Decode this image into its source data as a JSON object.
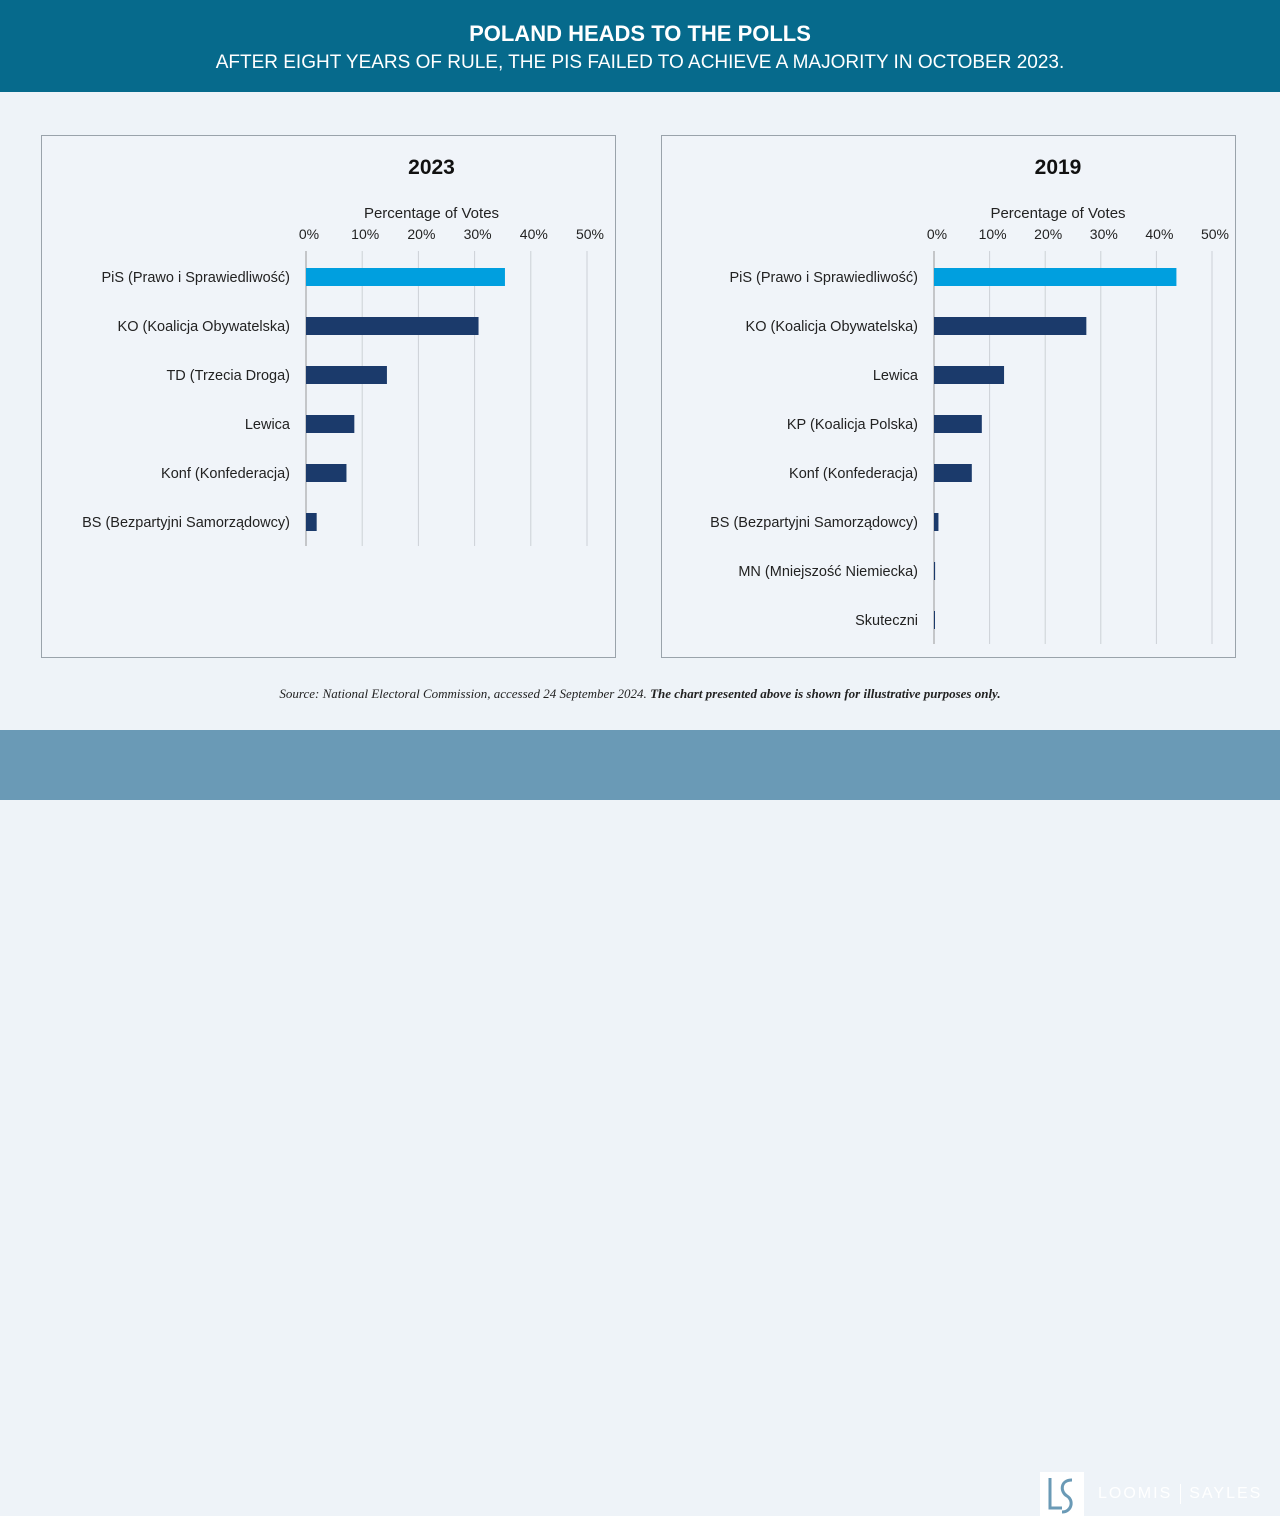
{
  "header": {
    "title": "POLAND HEADS TO THE POLLS",
    "subtitle": "AFTER EIGHT YEARS OF RULE, THE PIS FAILED TO ACHIEVE A MAJORITY IN OCTOBER 2023."
  },
  "chart_data": [
    {
      "type": "bar",
      "title": "2023",
      "xlabel": "Percentage of Votes",
      "xlim": [
        0,
        50
      ],
      "ticks": [
        "0%",
        "10%",
        "20%",
        "30%",
        "40%",
        "50%"
      ],
      "categories": [
        "PiS (Prawo i Sprawiedliwość)",
        "KO (Koalicja Obywatelska)",
        "TD (Trzecia Droga)",
        "Lewica",
        "Konf (Konfederacja)",
        "BS (Bezpartyjni Samorządowcy)"
      ],
      "values": [
        35.4,
        30.7,
        14.4,
        8.6,
        7.2,
        1.9
      ],
      "highlight_color": "#009fdf",
      "bar_color": "#1b3a6b"
    },
    {
      "type": "bar",
      "title": "2019",
      "xlabel": "Percentage of Votes",
      "xlim": [
        0,
        50
      ],
      "ticks": [
        "0%",
        "10%",
        "20%",
        "30%",
        "40%",
        "50%"
      ],
      "categories": [
        "PiS (Prawo i Sprawiedliwość)",
        "KO (Koalicja Obywatelska)",
        "Lewica",
        "KP (Koalicja Polska)",
        "Konf (Konfederacja)",
        "BS (Bezpartyjni Samorządowcy)",
        "MN (Mniejszość Niemiecka)",
        "Skuteczni"
      ],
      "values": [
        43.6,
        27.4,
        12.6,
        8.6,
        6.8,
        0.8,
        0.2,
        0.1
      ],
      "highlight_color": "#009fdf",
      "bar_color": "#1b3a6b"
    }
  ],
  "source": {
    "italic": "Source: National Electoral Commission, accessed 24 September 2024. ",
    "bold": "The chart presented above is shown for illustrative purposes only."
  },
  "logo": {
    "left": "LOOMIS",
    "right": "SAYLES"
  }
}
